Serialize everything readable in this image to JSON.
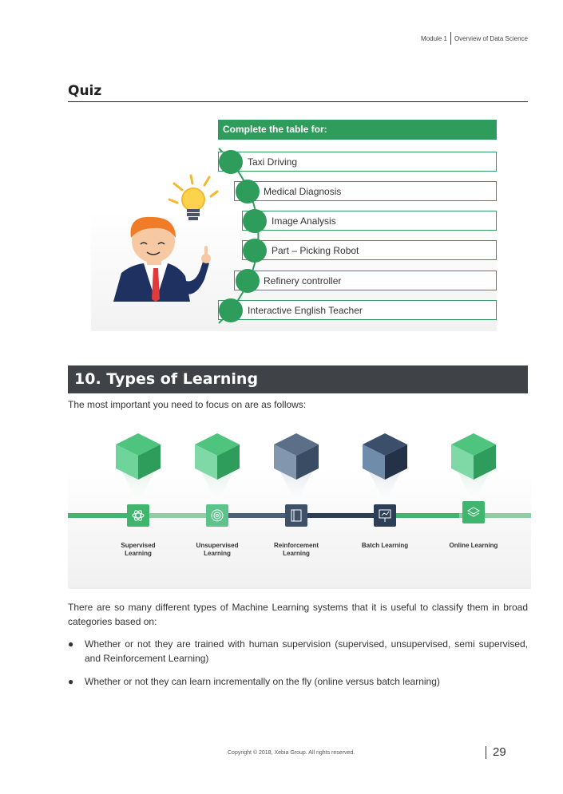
{
  "header": {
    "module": "Module 1",
    "title": "Overview of Data Science"
  },
  "quiz": {
    "title": "Quiz",
    "table_heading": "Complete the table for:",
    "items": [
      "Taxi Driving",
      "Medical Diagnosis",
      "Image Analysis",
      "Part – Picking Robot",
      "Refinery controller",
      "Interactive English Teacher"
    ]
  },
  "section": {
    "title": "10. Types of Learning",
    "intro": "The most important you need to focus on are as follows:"
  },
  "learning_types": [
    {
      "label_line1": "Supervised",
      "label_line2": "Learning",
      "icon": "atom-icon"
    },
    {
      "label_line1": "Unsupervised",
      "label_line2": "Learning",
      "icon": "target-icon"
    },
    {
      "label_line1": "Reinforcement",
      "label_line2": "Learning",
      "icon": "book-icon"
    },
    {
      "label_line1": "Batch Learning",
      "label_line2": "",
      "icon": "presentation-icon"
    },
    {
      "label_line1": "Online Learning",
      "label_line2": "",
      "icon": "layers-icon"
    }
  ],
  "colors": {
    "green": "#2e9d5b",
    "dark_slate": "#3f4246",
    "navy": "#2d3e57"
  },
  "body": {
    "paragraph": "There are so many different types of Machine Learning systems that it is useful to classify them in broad categories based on:",
    "bullets": [
      "Whether or not they are trained with human supervision (supervised, unsupervised, semi supervised, and Reinforcement Learning)",
      "Whether or not they can learn incrementally on the fly (online versus batch learning)"
    ]
  },
  "footer": {
    "copyright": "Copyright © 2018, Xebia Group. All rights reserved.",
    "page": "29"
  }
}
